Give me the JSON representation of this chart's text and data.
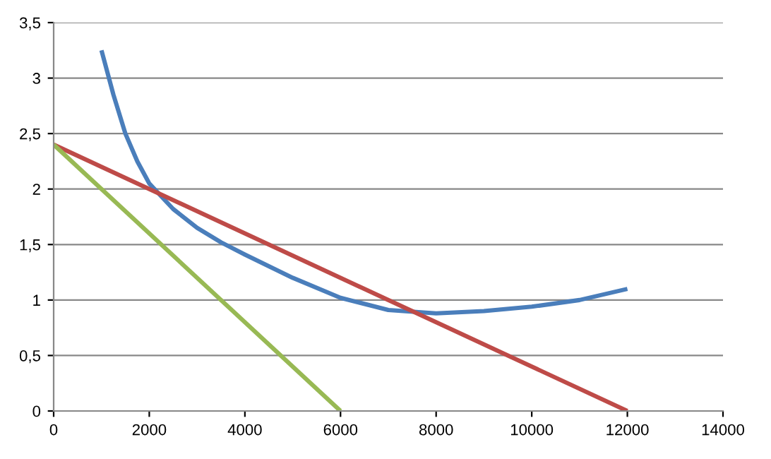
{
  "chart_data": {
    "type": "line",
    "series": [
      {
        "color": "#4a7ebb",
        "x": [
          1000,
          1250,
          1500,
          1750,
          2000,
          2500,
          3000,
          3500,
          4000,
          5000,
          6000,
          7000,
          8000,
          9000,
          10000,
          11000,
          12000
        ],
        "values": [
          3.25,
          2.85,
          2.5,
          2.25,
          2.05,
          1.82,
          1.65,
          1.52,
          1.41,
          1.2,
          1.02,
          0.91,
          0.88,
          0.9,
          0.94,
          1.0,
          1.1
        ]
      },
      {
        "color": "#be4b48",
        "x": [
          0,
          12000
        ],
        "values": [
          2.4,
          0
        ]
      },
      {
        "color": "#98b954",
        "x": [
          0,
          6000
        ],
        "values": [
          2.4,
          0
        ]
      }
    ],
    "xlim": [
      0,
      14000
    ],
    "xticks": [
      0,
      2000,
      4000,
      6000,
      8000,
      10000,
      12000,
      14000
    ],
    "ylim": [
      0,
      3.5
    ],
    "yticks": [
      0,
      {
        "value": 0.5,
        "label": "0,5"
      },
      1,
      {
        "value": 1.5,
        "label": "1,5"
      },
      2,
      {
        "value": 2.5,
        "label": "2,5"
      },
      3,
      {
        "value": 3.5,
        "label": "3,5"
      }
    ],
    "grid": "y",
    "legend": false
  }
}
